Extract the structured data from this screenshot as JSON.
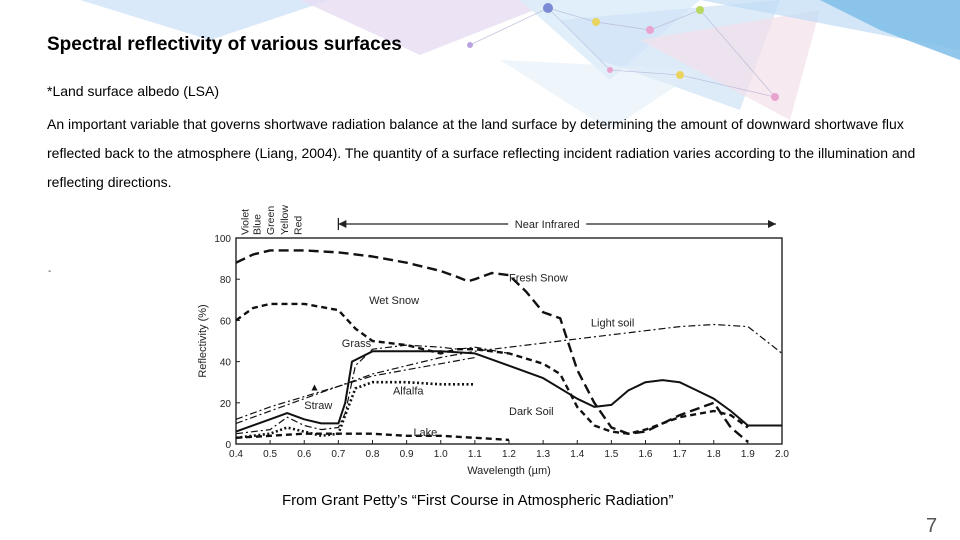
{
  "slide": {
    "title": "Spectral reflectivity of various surfaces",
    "subtitle": "*Land surface albedo (LSA)",
    "paragraph": "An important variable that governs shortwave radiation balance at the land surface by determining the amount of downward shortwave flux reflected back to the atmosphere (Liang, 2004). The quantity of a surface reflecting incident radiation varies according to the illumination and reflecting directions.",
    "stray_mark": "-",
    "caption": "From Grant Petty’s “First Course in Atmospheric Radiation”",
    "page_number": "7"
  },
  "chart_data": {
    "type": "line",
    "xlabel": "Wavelength (µm)",
    "ylabel": "Reflectivity (%)",
    "xlim": [
      0.4,
      2.0
    ],
    "ylim": [
      0,
      100
    ],
    "xticks": [
      "0.4",
      "0.5",
      "0.6",
      "0.7",
      "0.8",
      "0.9",
      "1.0",
      "1.1",
      "1.2",
      "1.3",
      "1.4",
      "1.5",
      "1.6",
      "1.7",
      "1.8",
      "1.9",
      "2.0"
    ],
    "yticks": [
      0,
      20,
      40,
      60,
      80,
      100
    ],
    "color_bands": [
      "Violet",
      "Blue",
      "Green",
      "Yellow",
      "Red"
    ],
    "region_label": "Near Infrared",
    "series": [
      {
        "name": "Fresh Snow",
        "style": "longdash",
        "x": [
          0.4,
          0.45,
          0.5,
          0.55,
          0.6,
          0.7,
          0.8,
          0.9,
          1.0,
          1.05,
          1.08,
          1.1,
          1.15,
          1.2,
          1.25,
          1.3,
          1.35,
          1.4,
          1.45,
          1.5,
          1.55,
          1.6,
          1.65,
          1.7,
          1.75,
          1.8,
          1.85,
          1.9
        ],
        "y": [
          88,
          92,
          94,
          94,
          94,
          93,
          91,
          88,
          84,
          81,
          79,
          80,
          83,
          82,
          74,
          64,
          61,
          36,
          20,
          8,
          5,
          6,
          10,
          14,
          17,
          20,
          8,
          1
        ]
      },
      {
        "name": "Wet Snow",
        "style": "dash",
        "x": [
          0.4,
          0.45,
          0.5,
          0.6,
          0.7,
          0.75,
          0.8,
          0.9,
          1.0,
          1.05,
          1.1,
          1.2,
          1.3,
          1.35,
          1.4,
          1.45,
          1.5,
          1.55,
          1.6,
          1.7,
          1.8,
          1.85,
          1.9
        ],
        "y": [
          60,
          66,
          68,
          68,
          65,
          56,
          50,
          48,
          44,
          46,
          46,
          44,
          39,
          34,
          18,
          9,
          6,
          5,
          7,
          13,
          16,
          14,
          8
        ]
      },
      {
        "name": "Light soil",
        "style": "dashdot",
        "x": [
          0.4,
          0.5,
          0.6,
          0.7,
          0.8,
          0.9,
          1.0,
          1.1,
          1.2,
          1.3,
          1.4,
          1.5,
          1.6,
          1.7,
          1.8,
          1.9,
          2.0
        ],
        "y": [
          10,
          16,
          22,
          28,
          34,
          38,
          42,
          45,
          47,
          49,
          51,
          53,
          55,
          57,
          58,
          57,
          44
        ]
      },
      {
        "name": "Grass",
        "style": "dashdot",
        "x": [
          0.4,
          0.5,
          0.55,
          0.6,
          0.65,
          0.7,
          0.72,
          0.75,
          0.8,
          0.9,
          1.0,
          1.05,
          1.1,
          1.2
        ],
        "y": [
          5,
          7,
          13,
          9,
          7,
          8,
          15,
          38,
          46,
          48,
          47,
          46,
          47,
          44
        ]
      },
      {
        "name": "Dark Soil",
        "style": "solid",
        "x": [
          0.4,
          0.5,
          0.55,
          0.6,
          0.65,
          0.7,
          0.72,
          0.74,
          0.8,
          0.9,
          1.0,
          1.1,
          1.2,
          1.3,
          1.4,
          1.45,
          1.5,
          1.55,
          1.6,
          1.65,
          1.7,
          1.75,
          1.8,
          1.85,
          1.9,
          2.0
        ],
        "y": [
          6,
          12,
          15,
          12,
          10,
          10,
          20,
          40,
          45,
          45,
          45,
          44,
          38,
          32,
          22,
          18,
          19,
          26,
          30,
          31,
          30,
          26,
          22,
          16,
          9,
          9
        ]
      },
      {
        "name": "Alfalfa",
        "style": "dot",
        "x": [
          0.4,
          0.5,
          0.55,
          0.6,
          0.65,
          0.7,
          0.72,
          0.75,
          0.8,
          0.9,
          1.0,
          1.1
        ],
        "y": [
          3,
          5,
          8,
          6,
          4,
          5,
          14,
          27,
          30,
          30,
          29,
          29
        ]
      },
      {
        "name": "Straw",
        "style": "dashdot",
        "x": [
          0.4,
          0.5,
          0.6,
          0.7,
          0.8,
          0.9,
          1.0,
          1.1
        ],
        "y": [
          12,
          18,
          23,
          28,
          33,
          36,
          39,
          42
        ]
      },
      {
        "name": "Lake",
        "style": "dash",
        "x": [
          0.4,
          0.5,
          0.6,
          0.7,
          0.8,
          0.9,
          1.0,
          1.1,
          1.2
        ],
        "y": [
          3,
          4,
          5,
          5,
          5,
          4,
          4,
          3,
          2
        ]
      }
    ],
    "labels": [
      {
        "name": "Fresh Snow",
        "x": 1.2,
        "y": 79
      },
      {
        "name": "Wet Snow",
        "x": 0.79,
        "y": 68
      },
      {
        "name": "Light soil",
        "x": 1.44,
        "y": 57
      },
      {
        "name": "Grass",
        "x": 0.71,
        "y": 47
      },
      {
        "name": "Alfalfa",
        "x": 0.86,
        "y": 24
      },
      {
        "name": "Straw",
        "x": 0.6,
        "y": 17
      },
      {
        "name": "Dark Soil",
        "x": 1.2,
        "y": 14
      },
      {
        "name": "Lake",
        "x": 0.92,
        "y": 4
      }
    ]
  }
}
